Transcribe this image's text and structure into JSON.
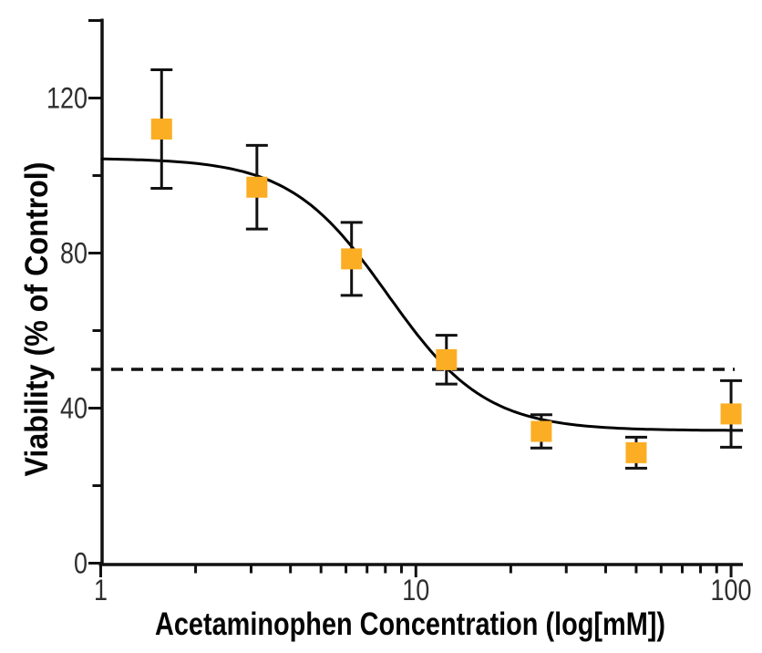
{
  "page": {
    "background": "#ffffff"
  },
  "chart_data": {
    "type": "scatter",
    "title": "",
    "xlabel": "Acetaminophen Concentration (log[mM])",
    "ylabel": "Viability (% of Control)",
    "x_scale": "log",
    "xlim": [
      1,
      109
    ],
    "ylim": [
      0,
      140
    ],
    "grid": false,
    "legend": null,
    "x_major_ticks": [
      1,
      10,
      100
    ],
    "x_tick_labels": [
      "1",
      "10",
      "100"
    ],
    "x_minor_ticks": [
      2,
      3,
      4,
      5,
      6,
      7,
      8,
      9,
      20,
      30,
      40,
      50,
      60,
      70,
      80,
      90
    ],
    "y_major_ticks": [
      0,
      40,
      80,
      120,
      140
    ],
    "y_tick_labels": [
      "0",
      "40",
      "80",
      "120",
      ""
    ],
    "y_minor_ticks": [
      20,
      60,
      100
    ],
    "series": [
      {
        "name": "Viability",
        "marker": "square",
        "marker_color": "#FBAE24",
        "marker_size": 23,
        "error_bar_color": "#111111",
        "x": [
          1.56,
          3.13,
          6.25,
          12.5,
          25,
          50,
          100
        ],
        "y": [
          112,
          97,
          78.5,
          52.5,
          34,
          28.5,
          38.5
        ],
        "y_error": [
          15.3,
          10.8,
          9.4,
          6.3,
          4.3,
          4,
          8.6
        ]
      }
    ],
    "fit_curve": {
      "model": "four-parameter-logistic",
      "top": 104.5,
      "bottom": 34.2,
      "hill_slope": -2.8,
      "log_ic50": 0.91,
      "color": "#000000"
    },
    "reference_line": {
      "y": 50,
      "style": "dashed",
      "color": "#111111"
    }
  }
}
